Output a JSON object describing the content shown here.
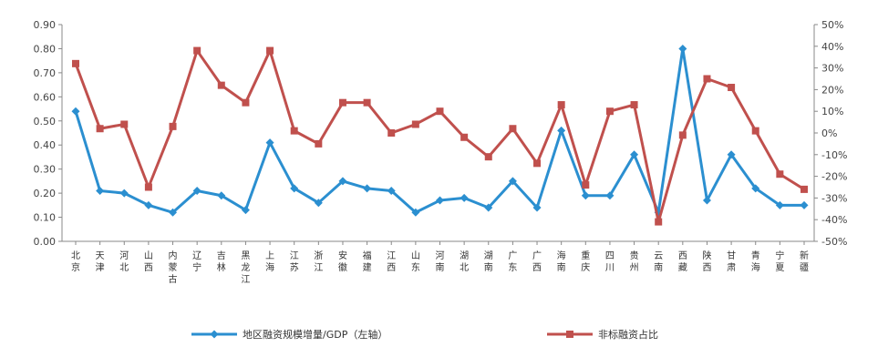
{
  "chart_data": {
    "type": "line",
    "categories": [
      "北京",
      "天津",
      "河北",
      "山西",
      "内蒙古",
      "辽宁",
      "吉林",
      "黑龙江",
      "上海",
      "江苏",
      "浙江",
      "安徽",
      "福建",
      "江西",
      "山东",
      "河南",
      "湖北",
      "湖南",
      "广东",
      "广西",
      "海南",
      "重庆",
      "四川",
      "贵州",
      "云南",
      "西藏",
      "陕西",
      "甘肃",
      "青海",
      "宁夏",
      "新疆"
    ],
    "category_lines": [
      [
        "北",
        "京"
      ],
      [
        "天",
        "津"
      ],
      [
        "河",
        "北"
      ],
      [
        "山",
        "西"
      ],
      [
        "内",
        "蒙",
        "古"
      ],
      [
        "辽",
        "宁"
      ],
      [
        "吉",
        "林"
      ],
      [
        "黑",
        "龙",
        "江"
      ],
      [
        "上",
        "海"
      ],
      [
        "江",
        "苏"
      ],
      [
        "浙",
        "江"
      ],
      [
        "安",
        "徽"
      ],
      [
        "福",
        "建"
      ],
      [
        "江",
        "西"
      ],
      [
        "山",
        "东"
      ],
      [
        "河",
        "南"
      ],
      [
        "湖",
        "北"
      ],
      [
        "湖",
        "南"
      ],
      [
        "广",
        "东"
      ],
      [
        "广",
        "西"
      ],
      [
        "海",
        "南"
      ],
      [
        "重",
        "庆"
      ],
      [
        "四",
        "川"
      ],
      [
        "贵",
        "州"
      ],
      [
        "云",
        "南"
      ],
      [
        "西",
        "藏"
      ],
      [
        "陕",
        "西"
      ],
      [
        "甘",
        "肃"
      ],
      [
        "青",
        "海"
      ],
      [
        "宁",
        "夏"
      ],
      [
        "新",
        "疆"
      ]
    ],
    "series": [
      {
        "name": "地区融资规模增量/GDP（左轴）",
        "axis": "left",
        "color": "#2b8fd0",
        "marker": "diamond",
        "values": [
          0.54,
          0.21,
          0.2,
          0.15,
          0.12,
          0.21,
          0.19,
          0.13,
          0.41,
          0.22,
          0.16,
          0.25,
          0.22,
          0.21,
          0.12,
          0.17,
          0.18,
          0.14,
          0.25,
          0.14,
          0.46,
          0.19,
          0.19,
          0.36,
          0.12,
          0.8,
          0.17,
          0.36,
          0.22,
          0.15,
          0.15
        ]
      },
      {
        "name": "非标融资占比",
        "axis": "right",
        "color": "#c0504d",
        "marker": "square",
        "values": [
          32,
          2,
          4,
          -25,
          3,
          38,
          22,
          14,
          38,
          1,
          -5,
          14,
          14,
          0,
          4,
          10,
          -2,
          -11,
          2,
          -14,
          13,
          -24,
          10,
          13,
          -41,
          -1,
          25,
          21,
          1,
          -19,
          -26
        ]
      }
    ],
    "y_left": {
      "ylim": [
        0.0,
        0.9
      ],
      "ticks": [
        "0.00",
        "0.10",
        "0.20",
        "0.30",
        "0.40",
        "0.50",
        "0.60",
        "0.70",
        "0.80",
        "0.90"
      ]
    },
    "y_right": {
      "ylim": [
        -50,
        50
      ],
      "ticks": [
        "-50%",
        "-40%",
        "-30%",
        "-20%",
        "-10%",
        "0%",
        "10%",
        "20%",
        "30%",
        "40%",
        "50%"
      ]
    },
    "legend": {
      "position": "bottom"
    },
    "grid": false
  }
}
